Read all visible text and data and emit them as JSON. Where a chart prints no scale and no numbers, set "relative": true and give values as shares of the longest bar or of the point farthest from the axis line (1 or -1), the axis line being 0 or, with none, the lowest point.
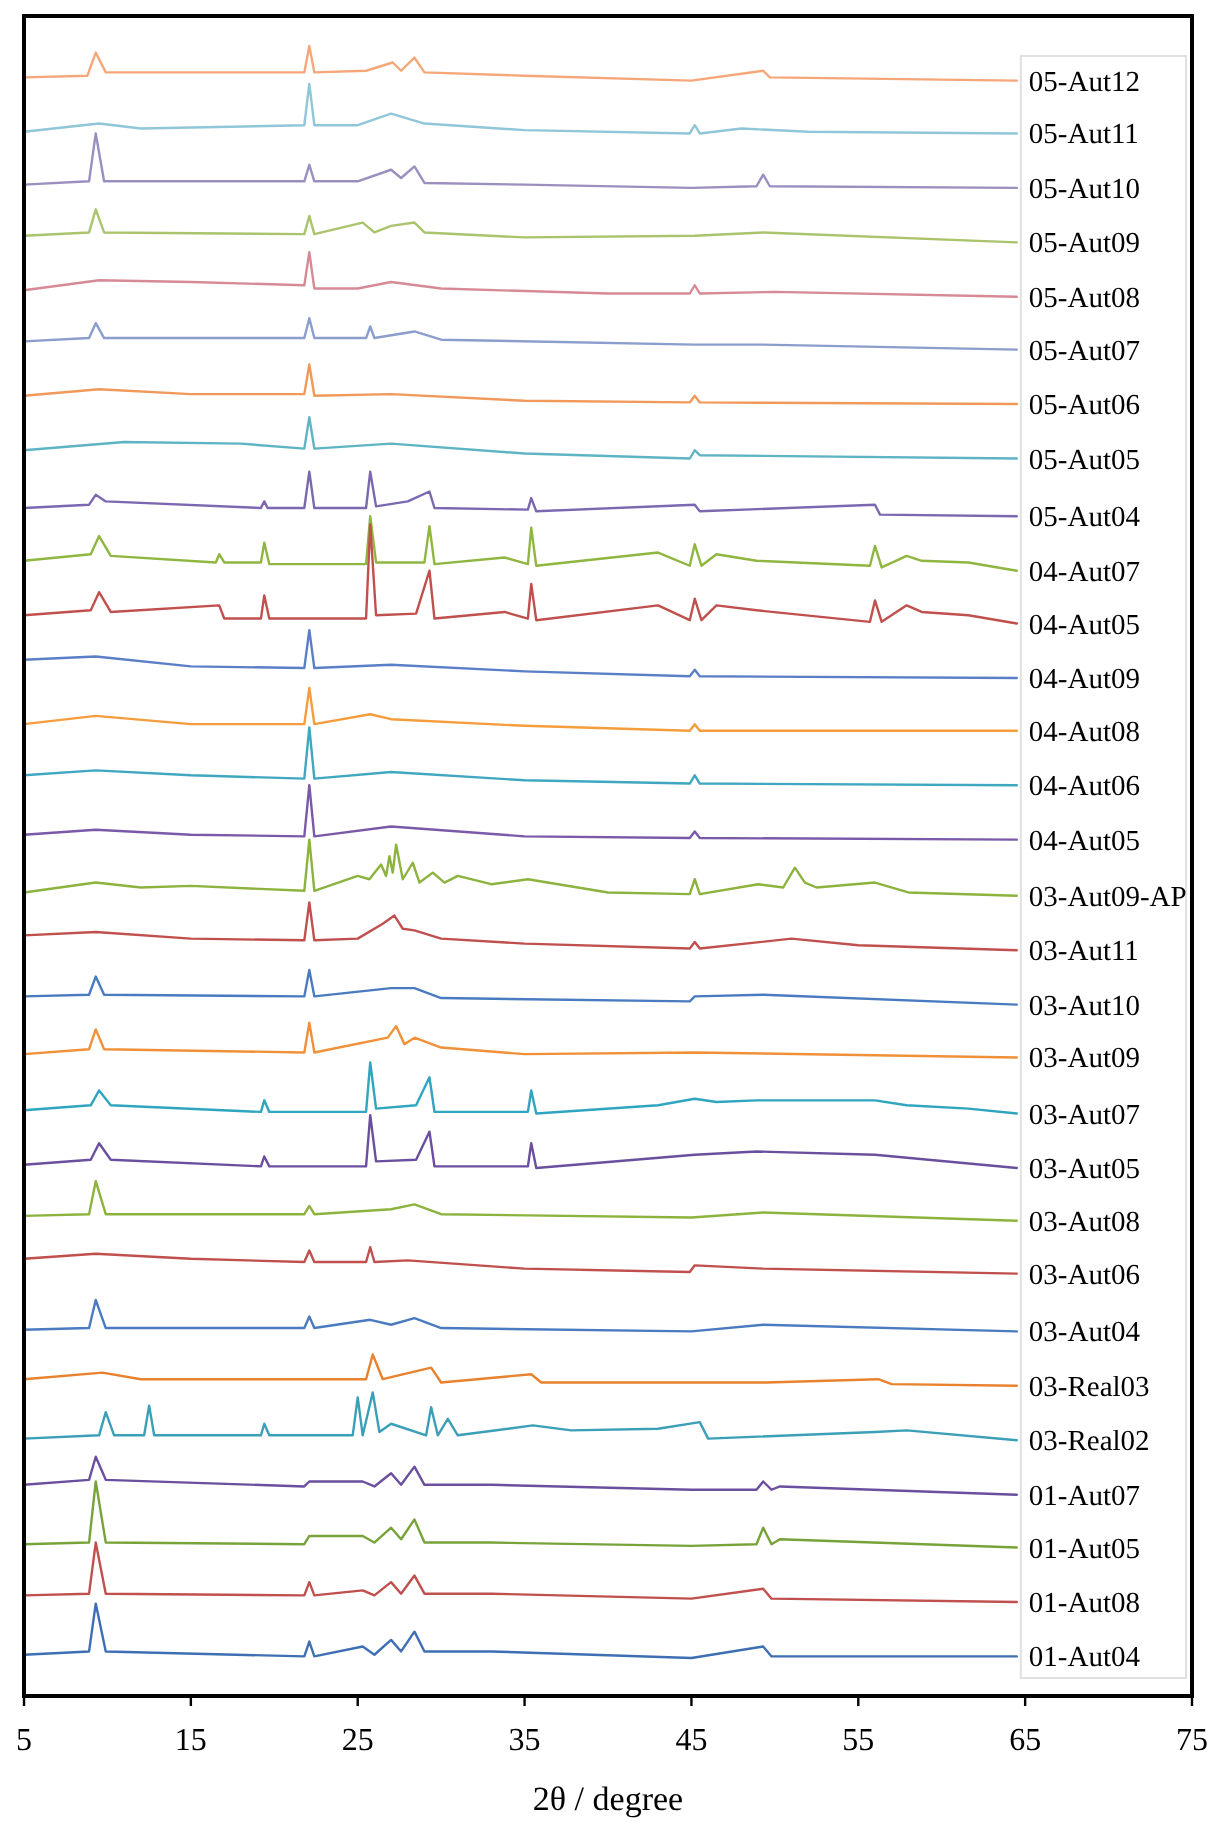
{
  "chart_data": {
    "type": "line",
    "relative": true,
    "xlabel": "2θ / degree",
    "xlim": [
      5,
      75
    ],
    "xticks": [
      5,
      15,
      25,
      35,
      45,
      55,
      65,
      75
    ],
    "tick_labels": "x",
    "legend": "right",
    "series": [
      {
        "name": "05-Aut12",
        "color": "#f5a77a",
        "x": [
          5,
          8.8,
          9.3,
          9.9,
          15,
          21.8,
          22.1,
          22.4,
          25.5,
          27.1,
          27.6,
          28.4,
          29,
          35,
          45,
          49.3,
          49.7,
          64.5
        ],
        "values": [
          0.981,
          0.982,
          0.996,
          0.984,
          0.984,
          0.984,
          1.0,
          0.984,
          0.985,
          0.99,
          0.985,
          0.993,
          0.984,
          0.982,
          0.979,
          0.985,
          0.981,
          0.979
        ]
      },
      {
        "name": "05-Aut11",
        "color": "#8fc7d9",
        "x": [
          5,
          9.5,
          12,
          21.8,
          22.1,
          22.4,
          25,
          27,
          29,
          35,
          44.9,
          45.2,
          45.5,
          48,
          52,
          64.5
        ],
        "values": [
          0.948,
          0.953,
          0.95,
          0.952,
          0.977,
          0.952,
          0.952,
          0.959,
          0.953,
          0.949,
          0.947,
          0.952,
          0.947,
          0.95,
          0.948,
          0.947
        ]
      },
      {
        "name": "05-Aut10",
        "color": "#9b8fc0",
        "x": [
          5,
          8.9,
          9.3,
          9.8,
          15,
          21.8,
          22.1,
          22.4,
          25,
          27,
          27.6,
          28.4,
          29,
          35,
          45,
          48.9,
          49.3,
          49.7,
          64.5
        ],
        "values": [
          0.916,
          0.918,
          0.947,
          0.918,
          0.918,
          0.918,
          0.928,
          0.918,
          0.918,
          0.925,
          0.92,
          0.927,
          0.917,
          0.916,
          0.914,
          0.915,
          0.922,
          0.915,
          0.914
        ]
      },
      {
        "name": "05-Aut09",
        "color": "#a9c46c",
        "x": [
          5,
          8.9,
          9.3,
          9.8,
          21.8,
          22.1,
          22.4,
          25.3,
          26,
          27,
          28.4,
          29,
          35,
          45.2,
          49.3,
          64.5
        ],
        "values": [
          0.885,
          0.887,
          0.901,
          0.887,
          0.886,
          0.897,
          0.886,
          0.893,
          0.887,
          0.891,
          0.893,
          0.887,
          0.884,
          0.885,
          0.887,
          0.881
        ]
      },
      {
        "name": "05-Aut08",
        "color": "#d68a95",
        "x": [
          5,
          9.5,
          15,
          21.8,
          22.1,
          22.4,
          25,
          27,
          30,
          40,
          44.9,
          45.2,
          45.5,
          50,
          64.5
        ],
        "values": [
          0.852,
          0.858,
          0.857,
          0.855,
          0.875,
          0.853,
          0.853,
          0.857,
          0.853,
          0.85,
          0.85,
          0.855,
          0.85,
          0.851,
          0.848
        ]
      },
      {
        "name": "05-Aut07",
        "color": "#8a9dcc",
        "x": [
          5,
          8.9,
          9.3,
          9.8,
          21.8,
          22.1,
          22.4,
          25.5,
          25.75,
          26,
          28.4,
          30,
          45.2,
          49.3,
          64.5
        ],
        "values": [
          0.821,
          0.823,
          0.832,
          0.823,
          0.823,
          0.835,
          0.823,
          0.823,
          0.83,
          0.823,
          0.827,
          0.822,
          0.819,
          0.819,
          0.816
        ]
      },
      {
        "name": "05-Aut06",
        "color": "#f0995a",
        "x": [
          5,
          9.5,
          15,
          21.8,
          22.1,
          22.4,
          27,
          35,
          44.9,
          45.2,
          45.5,
          64.5
        ],
        "values": [
          0.788,
          0.792,
          0.789,
          0.789,
          0.807,
          0.788,
          0.789,
          0.785,
          0.784,
          0.788,
          0.784,
          0.783
        ]
      },
      {
        "name": "05-Aut05",
        "color": "#5fb4c4",
        "x": [
          5,
          11,
          18,
          21.8,
          22.1,
          22.4,
          27,
          35,
          44.9,
          45.2,
          45.5,
          64.5
        ],
        "values": [
          0.755,
          0.76,
          0.759,
          0.756,
          0.775,
          0.756,
          0.759,
          0.753,
          0.75,
          0.755,
          0.752,
          0.75
        ]
      },
      {
        "name": "05-Aut04",
        "color": "#7b68b0",
        "x": [
          5,
          8.9,
          9.3,
          9.9,
          19.2,
          19.4,
          19.6,
          21.8,
          22.1,
          22.4,
          25.5,
          25.75,
          26.1,
          28,
          29.3,
          29.6,
          35.2,
          35.4,
          35.7,
          45.2,
          45.5,
          56,
          56.3,
          64.5
        ],
        "values": [
          0.72,
          0.722,
          0.728,
          0.724,
          0.72,
          0.724,
          0.72,
          0.72,
          0.742,
          0.72,
          0.72,
          0.742,
          0.721,
          0.724,
          0.73,
          0.72,
          0.719,
          0.726,
          0.718,
          0.722,
          0.718,
          0.722,
          0.716,
          0.715
        ]
      },
      {
        "name": "04-Aut07",
        "color": "#8fb640",
        "x": [
          5,
          9,
          9.5,
          10.2,
          16.5,
          16.7,
          17,
          19.2,
          19.4,
          19.7,
          25.5,
          25.75,
          26.1,
          29,
          29.3,
          29.6,
          33.8,
          35.2,
          35.4,
          35.7,
          43,
          44.9,
          45.2,
          45.6,
          46.5,
          48.9,
          55.7,
          56,
          56.4,
          57.9,
          58.8,
          61.6,
          64.5
        ],
        "values": [
          0.688,
          0.692,
          0.703,
          0.691,
          0.687,
          0.692,
          0.687,
          0.687,
          0.699,
          0.686,
          0.686,
          0.715,
          0.687,
          0.687,
          0.709,
          0.686,
          0.69,
          0.686,
          0.708,
          0.685,
          0.693,
          0.685,
          0.698,
          0.685,
          0.692,
          0.688,
          0.685,
          0.697,
          0.684,
          0.691,
          0.688,
          0.687,
          0.682
        ]
      },
      {
        "name": "04-Aut05",
        "color": "#c0504d",
        "x": [
          5,
          9,
          9.5,
          10.2,
          16.7,
          17,
          19.2,
          19.4,
          19.7,
          25.5,
          25.75,
          26.1,
          28.5,
          29.3,
          29.6,
          33.8,
          35.2,
          35.4,
          35.7,
          43,
          44.9,
          45.2,
          45.6,
          46.5,
          48.9,
          55.7,
          56,
          56.4,
          57.9,
          58.8,
          61.6,
          64.5
        ],
        "values": [
          0.655,
          0.658,
          0.669,
          0.657,
          0.661,
          0.653,
          0.653,
          0.667,
          0.653,
          0.653,
          0.71,
          0.655,
          0.656,
          0.682,
          0.653,
          0.657,
          0.653,
          0.674,
          0.652,
          0.661,
          0.652,
          0.665,
          0.652,
          0.661,
          0.658,
          0.651,
          0.664,
          0.651,
          0.661,
          0.657,
          0.655,
          0.65
        ]
      },
      {
        "name": "04-Aut09",
        "color": "#5b7fc7",
        "x": [
          5,
          9.3,
          15,
          21.8,
          22.1,
          22.4,
          27,
          35,
          44.9,
          45.2,
          45.5,
          64.5
        ],
        "values": [
          0.628,
          0.63,
          0.624,
          0.623,
          0.646,
          0.623,
          0.625,
          0.621,
          0.618,
          0.622,
          0.618,
          0.617
        ]
      },
      {
        "name": "04-Aut08",
        "color": "#f59d3d",
        "x": [
          5,
          9.3,
          15,
          21.8,
          22.1,
          22.4,
          25.75,
          27,
          35,
          44.9,
          45.2,
          45.5,
          64.5
        ],
        "values": [
          0.589,
          0.594,
          0.589,
          0.589,
          0.611,
          0.589,
          0.595,
          0.592,
          0.588,
          0.585,
          0.589,
          0.585,
          0.585
        ]
      },
      {
        "name": "04-Aut06",
        "color": "#3fa7c0",
        "x": [
          5,
          9.3,
          15,
          21.8,
          22.1,
          22.4,
          27,
          35,
          44.9,
          45.2,
          45.5,
          64.5
        ],
        "values": [
          0.558,
          0.561,
          0.558,
          0.556,
          0.587,
          0.556,
          0.56,
          0.555,
          0.553,
          0.558,
          0.553,
          0.552
        ]
      },
      {
        "name": "04-Aut05",
        "color": "#7a5aa8",
        "x": [
          5,
          9.3,
          15,
          21.8,
          22.1,
          22.4,
          27,
          35,
          44.9,
          45.2,
          45.5,
          64.5
        ],
        "values": [
          0.522,
          0.525,
          0.522,
          0.521,
          0.552,
          0.521,
          0.527,
          0.521,
          0.52,
          0.524,
          0.52,
          0.519
        ]
      },
      {
        "name": "03-Aut09-AP",
        "color": "#8cb33d",
        "x": [
          5,
          9.3,
          12,
          15,
          21.8,
          22.1,
          22.4,
          25,
          25.7,
          26.4,
          26.7,
          26.9,
          27.1,
          27.3,
          27.7,
          28.3,
          28.7,
          29.5,
          30.2,
          31,
          33,
          35.2,
          40,
          44.9,
          45.2,
          45.5,
          49,
          50.5,
          51.2,
          51.8,
          52.5,
          56,
          58,
          64.5
        ],
        "values": [
          0.487,
          0.493,
          0.49,
          0.491,
          0.488,
          0.519,
          0.488,
          0.497,
          0.495,
          0.504,
          0.497,
          0.509,
          0.499,
          0.516,
          0.495,
          0.505,
          0.493,
          0.499,
          0.493,
          0.497,
          0.492,
          0.495,
          0.487,
          0.486,
          0.495,
          0.486,
          0.492,
          0.49,
          0.502,
          0.493,
          0.49,
          0.493,
          0.487,
          0.485
        ]
      },
      {
        "name": "03-Aut11",
        "color": "#c0504d",
        "x": [
          5,
          9.3,
          15,
          21.8,
          22.1,
          22.4,
          25,
          26.5,
          27.2,
          27.7,
          28.4,
          30,
          35,
          44.9,
          45.2,
          45.5,
          51,
          55,
          64.5
        ],
        "values": [
          0.461,
          0.463,
          0.459,
          0.458,
          0.481,
          0.458,
          0.459,
          0.468,
          0.473,
          0.465,
          0.464,
          0.459,
          0.456,
          0.453,
          0.457,
          0.453,
          0.459,
          0.455,
          0.452
        ]
      },
      {
        "name": "03-Aut10",
        "color": "#4a7bc0",
        "x": [
          5,
          8.9,
          9.3,
          9.8,
          21.8,
          22.1,
          22.4,
          27,
          28.4,
          30,
          44.9,
          45.2,
          49.3,
          64.5
        ],
        "values": [
          0.424,
          0.425,
          0.436,
          0.425,
          0.424,
          0.44,
          0.424,
          0.429,
          0.429,
          0.423,
          0.421,
          0.424,
          0.425,
          0.419
        ]
      },
      {
        "name": "03-Aut09",
        "color": "#f0913a",
        "x": [
          5,
          8.9,
          9.3,
          9.8,
          21.8,
          22.1,
          22.4,
          26.8,
          27.3,
          27.8,
          28.4,
          30,
          35,
          45.2,
          64.5
        ],
        "values": [
          0.389,
          0.392,
          0.404,
          0.392,
          0.39,
          0.408,
          0.39,
          0.399,
          0.406,
          0.395,
          0.399,
          0.393,
          0.389,
          0.39,
          0.387
        ]
      },
      {
        "name": "03-Aut07",
        "color": "#2fa5bf",
        "x": [
          5,
          9,
          9.5,
          10.2,
          19.2,
          19.4,
          19.7,
          25.5,
          25.75,
          26.1,
          28.5,
          29.3,
          29.6,
          35.2,
          35.4,
          35.7,
          43,
          45.2,
          46.5,
          48.9,
          56,
          57.9,
          61.6,
          64.5
        ],
        "values": [
          0.355,
          0.358,
          0.367,
          0.358,
          0.354,
          0.361,
          0.354,
          0.354,
          0.384,
          0.356,
          0.358,
          0.375,
          0.354,
          0.354,
          0.367,
          0.353,
          0.358,
          0.362,
          0.36,
          0.361,
          0.361,
          0.358,
          0.356,
          0.353
        ]
      },
      {
        "name": "03-Aut05",
        "color": "#6b4f9e",
        "x": [
          5,
          9,
          9.5,
          10.2,
          19.2,
          19.4,
          19.7,
          25.5,
          25.75,
          26.1,
          28.5,
          29.3,
          29.6,
          35.2,
          35.4,
          35.7,
          45.2,
          48.9,
          56,
          64.5
        ],
        "values": [
          0.322,
          0.325,
          0.335,
          0.325,
          0.321,
          0.327,
          0.321,
          0.321,
          0.352,
          0.324,
          0.325,
          0.342,
          0.321,
          0.321,
          0.335,
          0.32,
          0.328,
          0.33,
          0.328,
          0.32
        ]
      },
      {
        "name": "03-Aut08",
        "color": "#8cb33d",
        "x": [
          5,
          8.9,
          9.3,
          9.9,
          21.8,
          22.1,
          22.4,
          27,
          28.4,
          30,
          45,
          49.3,
          64.5
        ],
        "values": [
          0.291,
          0.292,
          0.312,
          0.292,
          0.292,
          0.297,
          0.292,
          0.295,
          0.298,
          0.292,
          0.29,
          0.293,
          0.288
        ]
      },
      {
        "name": "03-Aut06",
        "color": "#c0504d",
        "x": [
          5,
          9.3,
          15,
          21.8,
          22.1,
          22.4,
          25.5,
          25.75,
          26,
          28,
          35,
          44.9,
          45.2,
          49.3,
          64.5
        ],
        "values": [
          0.265,
          0.268,
          0.265,
          0.263,
          0.27,
          0.263,
          0.263,
          0.272,
          0.263,
          0.264,
          0.259,
          0.257,
          0.261,
          0.259,
          0.256
        ]
      },
      {
        "name": "03-Aut04",
        "color": "#4a7bc0",
        "x": [
          5,
          8.9,
          9.3,
          9.9,
          21.8,
          22.1,
          22.4,
          25.75,
          27,
          28.4,
          30,
          45,
          49.3,
          64.5
        ],
        "values": [
          0.222,
          0.223,
          0.24,
          0.223,
          0.223,
          0.23,
          0.223,
          0.228,
          0.225,
          0.229,
          0.223,
          0.221,
          0.225,
          0.221
        ]
      },
      {
        "name": "03-Real03",
        "color": "#e8822e",
        "x": [
          5,
          9.7,
          12,
          25.5,
          25.9,
          26.5,
          29.4,
          30,
          35.4,
          36,
          43,
          45.5,
          49.5,
          56.2,
          57,
          64.5
        ],
        "values": [
          0.192,
          0.196,
          0.192,
          0.192,
          0.207,
          0.192,
          0.199,
          0.19,
          0.195,
          0.19,
          0.19,
          0.19,
          0.19,
          0.192,
          0.189,
          0.188
        ]
      },
      {
        "name": "03-Real02",
        "color": "#3b9fb8",
        "x": [
          5,
          9.5,
          9.9,
          10.4,
          12.2,
          12.5,
          12.8,
          19.2,
          19.4,
          19.7,
          24.7,
          25,
          25.3,
          25.9,
          26.3,
          27,
          29.1,
          29.4,
          29.8,
          30.4,
          31,
          35.5,
          37.8,
          43,
          45.5,
          46,
          56,
          57.9,
          64.5
        ],
        "values": [
          0.156,
          0.158,
          0.172,
          0.158,
          0.158,
          0.176,
          0.158,
          0.158,
          0.165,
          0.158,
          0.158,
          0.181,
          0.158,
          0.184,
          0.16,
          0.165,
          0.158,
          0.175,
          0.158,
          0.168,
          0.158,
          0.164,
          0.161,
          0.162,
          0.166,
          0.156,
          0.16,
          0.161,
          0.155
        ]
      },
      {
        "name": "01-Aut07",
        "color": "#6b4f9e",
        "x": [
          5,
          8.9,
          9.3,
          9.9,
          21.8,
          22.1,
          25.3,
          26,
          27,
          27.6,
          28.4,
          29,
          33,
          45,
          48.9,
          49.3,
          49.8,
          50.3,
          64.5
        ],
        "values": [
          0.128,
          0.131,
          0.145,
          0.131,
          0.127,
          0.13,
          0.13,
          0.127,
          0.135,
          0.128,
          0.139,
          0.128,
          0.128,
          0.125,
          0.125,
          0.13,
          0.125,
          0.127,
          0.122
        ]
      },
      {
        "name": "01-Aut05",
        "color": "#77a33a",
        "x": [
          5,
          8.9,
          9.3,
          9.9,
          21.8,
          22.1,
          25.3,
          26,
          27,
          27.6,
          28.4,
          29,
          33,
          45,
          48.9,
          49.3,
          49.8,
          50.3,
          64.5
        ],
        "values": [
          0.092,
          0.093,
          0.13,
          0.093,
          0.092,
          0.097,
          0.097,
          0.093,
          0.102,
          0.095,
          0.107,
          0.093,
          0.093,
          0.091,
          0.092,
          0.102,
          0.092,
          0.095,
          0.09
        ]
      },
      {
        "name": "01-Aut08",
        "color": "#c0504d",
        "x": [
          5,
          8.9,
          9.3,
          9.9,
          21.8,
          22.1,
          22.4,
          25.3,
          26,
          27,
          27.6,
          28.4,
          29,
          33,
          45,
          49.3,
          49.8,
          64.5
        ],
        "values": [
          0.061,
          0.062,
          0.093,
          0.062,
          0.061,
          0.069,
          0.061,
          0.064,
          0.061,
          0.069,
          0.062,
          0.073,
          0.062,
          0.062,
          0.059,
          0.065,
          0.059,
          0.057
        ]
      },
      {
        "name": "01-Aut04",
        "color": "#3e6fb3",
        "x": [
          5,
          8.9,
          9.3,
          9.9,
          21.8,
          22.1,
          22.4,
          25.3,
          26,
          27,
          27.6,
          28.4,
          29,
          33,
          45,
          49.3,
          49.8,
          64.5
        ],
        "values": [
          0.025,
          0.027,
          0.056,
          0.027,
          0.024,
          0.033,
          0.024,
          0.03,
          0.025,
          0.034,
          0.027,
          0.039,
          0.027,
          0.027,
          0.023,
          0.03,
          0.024,
          0.024
        ]
      }
    ]
  }
}
